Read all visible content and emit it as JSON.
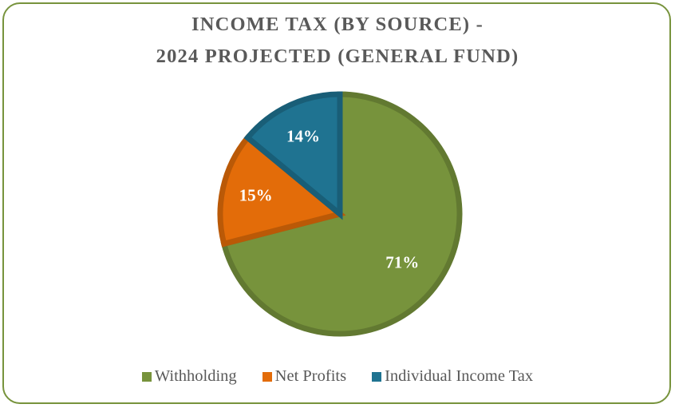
{
  "chart_data": {
    "type": "pie",
    "title_lines": [
      "INCOME TAX (BY SOURCE) -",
      "2024 PROJECTED (GENERAL FUND)"
    ],
    "categories": [
      "Withholding",
      "Net Profits",
      "Individual Income Tax"
    ],
    "values": [
      71,
      15,
      14
    ],
    "data_labels": [
      "71%",
      "15%",
      "14%"
    ],
    "colors": [
      "#77933c",
      "#e36c09",
      "#1f7391"
    ],
    "legend_placement": "bottom"
  }
}
